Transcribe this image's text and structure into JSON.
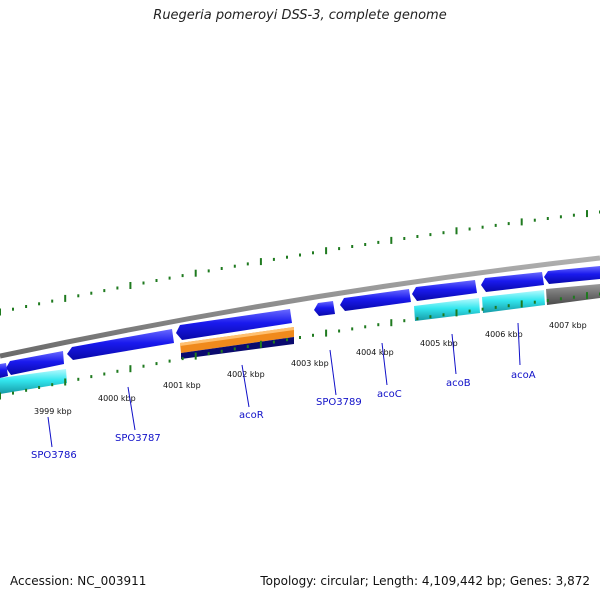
{
  "title": "Ruegeria pomeroyi DSS-3, complete genome",
  "footer": {
    "accession": "Accession: NC_003911",
    "topology": "Topology: circular; Length: 4,109,442 bp; Genes: 3,872"
  },
  "scale_labels": [
    "3999 kbp",
    "4000 kbp",
    "4001 kbp",
    "4002 kbp",
    "4003 kbp",
    "4004 kbp",
    "4005 kbp",
    "4006 kbp",
    "4007 kbp"
  ],
  "gene_labels": [
    "SPO3786",
    "SPO3787",
    "acoR",
    "SPO3789",
    "acoC",
    "acoB",
    "acoA"
  ],
  "colors": {
    "cds_blue": "#1a1aee",
    "cds_cyan": "#33e6ee",
    "cds_gray": "#707070",
    "orange": "#f08a1c",
    "navy": "#0a0a6e",
    "backbone": "#8c8c8c",
    "tick_green": "#1f7a1f",
    "label_blue": "#1010c8"
  }
}
